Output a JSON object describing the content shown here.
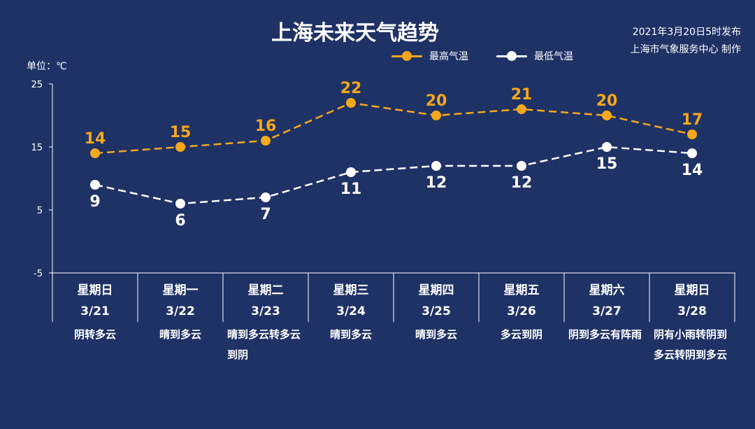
{
  "header": {
    "title": "上海未来天气趋势",
    "publish_line1": "2021年3月20日5时发布",
    "publish_line2": "上海市气象服务中心 制作",
    "unit": "单位：℃"
  },
  "colors": {
    "background": "#1f3266",
    "high": "#f5a81c",
    "low": "#ffffff",
    "axis": "#ffffff"
  },
  "chart_data": {
    "type": "line",
    "title": "上海未来天气趋势",
    "ylabel": "单位：℃",
    "ylim": [
      -5,
      25
    ],
    "yticks": [
      "25",
      "15",
      "5",
      "-5"
    ],
    "categories": [
      "3/21",
      "3/22",
      "3/23",
      "3/24",
      "3/25",
      "3/26",
      "3/27",
      "3/28"
    ],
    "weekdays": [
      "星期日",
      "星期一",
      "星期二",
      "星期三",
      "星期四",
      "星期五",
      "星期六",
      "星期日"
    ],
    "weather": [
      "阴转多云",
      "晴到多云",
      "晴到多云转多云到阴",
      "晴到多云",
      "晴到多云",
      "多云到阴",
      "阴到多云有阵雨",
      "阴有小雨转阴到多云转阴到多云"
    ],
    "legend_position": "top",
    "series": [
      {
        "name": "最高气温",
        "values": [
          14,
          15,
          16,
          22,
          20,
          21,
          20,
          17
        ],
        "color": "#f5a81c"
      },
      {
        "name": "最低气温",
        "values": [
          9,
          6,
          7,
          11,
          12,
          12,
          15,
          14
        ],
        "color": "#ffffff"
      }
    ]
  }
}
